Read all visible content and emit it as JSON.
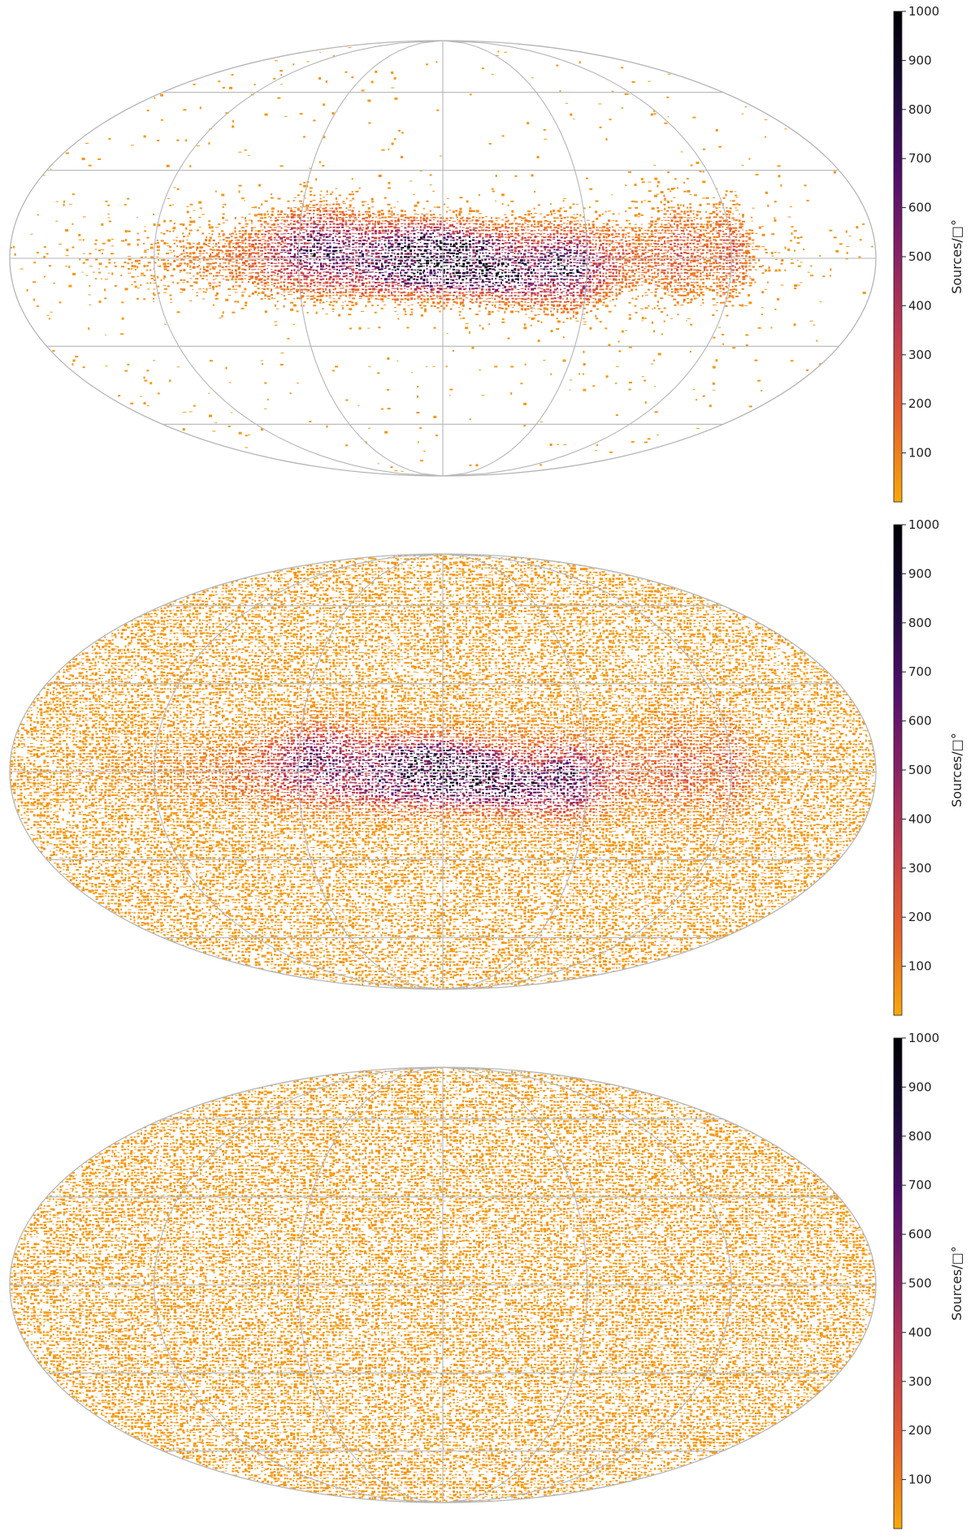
{
  "chart_data": [
    {
      "type": "heatmap",
      "projection": "mollweide",
      "grid": true,
      "colormap": [
        "#f9a80a",
        "#e8632a",
        "#c43c4e",
        "#8a2264",
        "#4f0e6c",
        "#1a0b3a",
        "#000004"
      ],
      "colorbar": {
        "label": "Sources/□°",
        "range": [
          0,
          1000
        ],
        "ticks": [
          100,
          200,
          300,
          400,
          500,
          600,
          700,
          800,
          900,
          1000
        ],
        "placement": "right"
      },
      "background_fill": 0.02,
      "galactic_plane_strength": 1.0
    },
    {
      "type": "heatmap",
      "projection": "mollweide",
      "grid": true,
      "colormap": [
        "#f9a80a",
        "#e8632a",
        "#c43c4e",
        "#8a2264",
        "#4f0e6c",
        "#1a0b3a",
        "#000004"
      ],
      "colorbar": {
        "label": "Sources/□°",
        "range": [
          0,
          1000
        ],
        "ticks": [
          100,
          200,
          300,
          400,
          500,
          600,
          700,
          800,
          900,
          1000
        ],
        "placement": "right"
      },
      "background_fill": 0.78,
      "galactic_plane_strength": 0.9
    },
    {
      "type": "heatmap",
      "projection": "mollweide",
      "grid": true,
      "colormap": [
        "#f9a80a",
        "#e8632a",
        "#c43c4e",
        "#8a2264",
        "#4f0e6c",
        "#1a0b3a",
        "#000004"
      ],
      "colorbar": {
        "label": "Sources/□°",
        "range": [
          0,
          1000
        ],
        "ticks": [
          100,
          200,
          300,
          400,
          500,
          600,
          700,
          800,
          900,
          1000
        ],
        "placement": "right"
      },
      "background_fill": 0.82,
      "galactic_plane_strength": 0.0
    }
  ]
}
